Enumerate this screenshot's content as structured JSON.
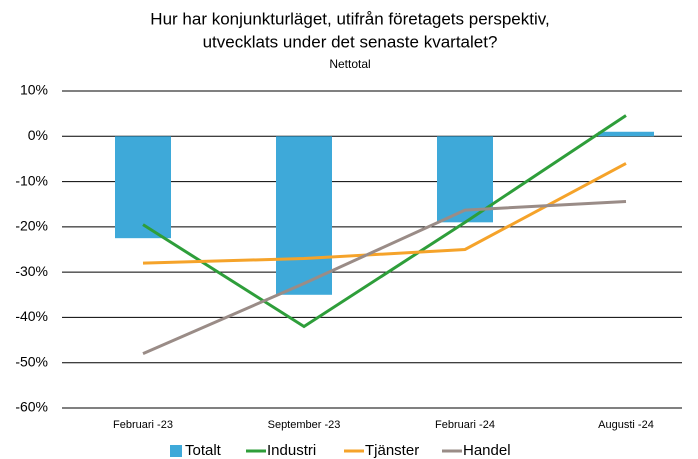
{
  "chart_data": {
    "type": "bar",
    "title": [
      "Hur har konjunkturläget, utifrån företagets perspektiv,",
      "utvecklats under det senaste kvartalet?"
    ],
    "subtitle": "Nettotal",
    "categories": [
      "Februari -23",
      "September -23",
      "Februari -24",
      "Augusti -24"
    ],
    "series": [
      {
        "name": "Totalt",
        "type": "bar",
        "color": "#3ea9d9",
        "values": [
          -22.5,
          -35,
          -19,
          1
        ]
      },
      {
        "name": "Industri",
        "type": "line",
        "color": "#2e9e3a",
        "values": [
          -19.5,
          -42,
          -19,
          4.6
        ]
      },
      {
        "name": "Tjänster",
        "type": "line",
        "color": "#f5a32a",
        "values": [
          -28,
          -27,
          -25,
          -6
        ]
      },
      {
        "name": "Handel",
        "type": "line",
        "color": "#9a8c87",
        "values": [
          -48,
          -32.5,
          -16.3,
          -14.4
        ]
      }
    ],
    "ylim": [
      -60,
      10
    ],
    "yticks": [
      {
        "value": -60,
        "label": "-60%"
      },
      {
        "value": -50,
        "label": "-50%"
      },
      {
        "value": -40,
        "label": "-40%"
      },
      {
        "value": -30,
        "label": "-30%"
      },
      {
        "value": -20,
        "label": "-20%"
      },
      {
        "value": -10,
        "label": "-10%"
      },
      {
        "value": 0,
        "label": "0%"
      },
      {
        "value": 10,
        "label": "10%"
      }
    ],
    "grid": true,
    "legend": "bottom"
  }
}
